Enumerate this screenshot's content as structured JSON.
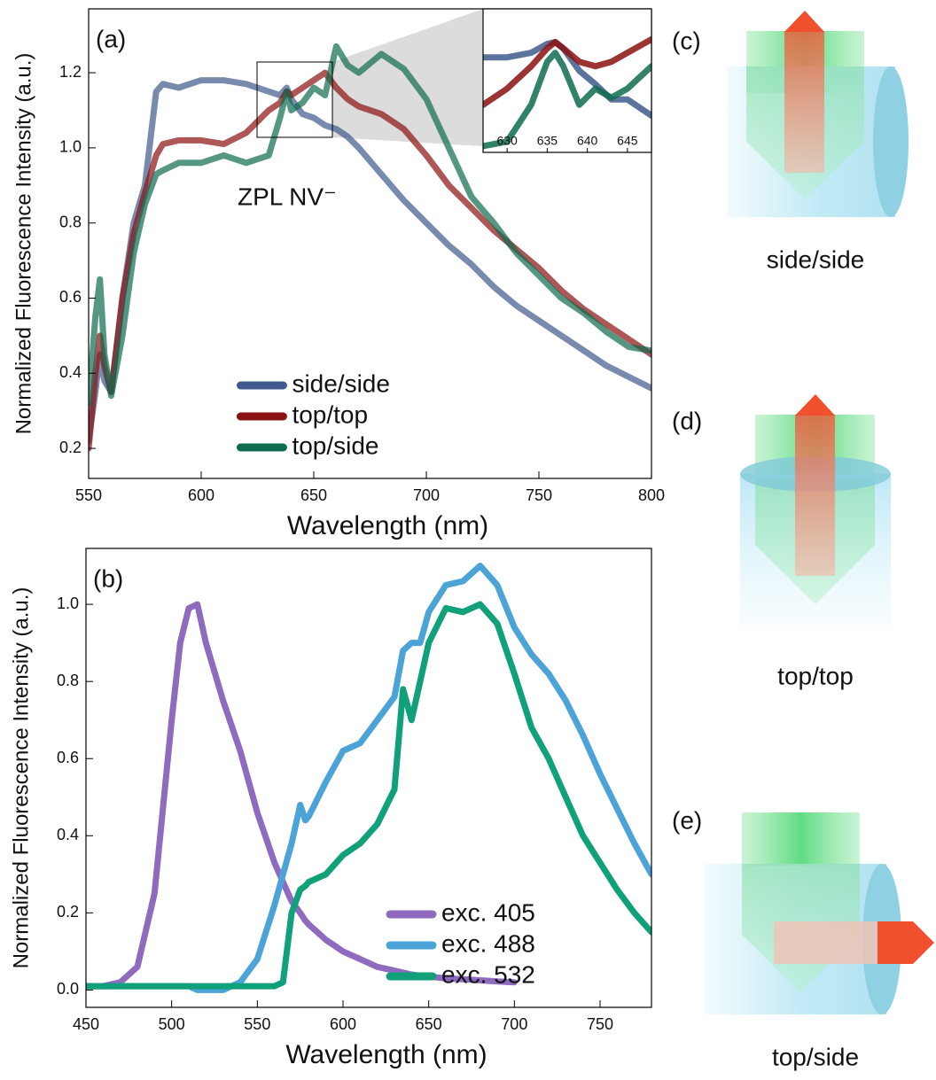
{
  "chart_data": [
    {
      "type": "line",
      "panel_label": "(a)",
      "annotation": "ZPL NV⁻",
      "xlabel": "Wavelength (nm)",
      "ylabel": "Normalized Fluorescence Intensity (a.u.)",
      "xlim": [
        550,
        800
      ],
      "ylim": [
        0.12,
        1.37
      ],
      "xticks": [
        550,
        600,
        650,
        700,
        750,
        800
      ],
      "yticks": [
        0.2,
        0.4,
        0.6,
        0.8,
        {
          "value": 1.0,
          "label": "1.0"
        },
        1.2
      ],
      "legend": "lower center",
      "line_opacity": 0.7,
      "x": [
        550,
        553,
        555,
        557,
        560,
        565,
        570,
        575,
        580,
        583,
        590,
        600,
        610,
        620,
        630,
        635,
        638,
        640,
        645,
        650,
        655,
        660,
        665,
        670,
        680,
        690,
        700,
        710,
        720,
        730,
        740,
        750,
        760,
        770,
        780,
        790,
        800
      ],
      "series": [
        {
          "name": "side/side",
          "color": "#3f5a8c",
          "values": [
            0.22,
            0.35,
            0.45,
            0.38,
            0.35,
            0.6,
            0.8,
            0.9,
            1.15,
            1.17,
            1.16,
            1.18,
            1.18,
            1.17,
            1.15,
            1.14,
            1.16,
            1.13,
            1.09,
            1.08,
            1.06,
            1.05,
            1.03,
            1.0,
            0.93,
            0.86,
            0.8,
            0.74,
            0.69,
            0.63,
            0.58,
            0.54,
            0.5,
            0.46,
            0.42,
            0.39,
            0.36
          ]
        },
        {
          "name": "top/top",
          "color": "#8b1010",
          "values": [
            0.2,
            0.4,
            0.5,
            0.42,
            0.35,
            0.6,
            0.77,
            0.88,
            0.98,
            1.01,
            1.02,
            1.02,
            1.01,
            1.04,
            1.1,
            1.12,
            1.15,
            1.14,
            1.16,
            1.18,
            1.2,
            1.16,
            1.13,
            1.11,
            1.09,
            1.05,
            0.98,
            0.9,
            0.84,
            0.78,
            0.73,
            0.68,
            0.62,
            0.57,
            0.53,
            0.49,
            0.45
          ]
        },
        {
          "name": "top/side",
          "color": "#0e6b4f",
          "values": [
            0.32,
            0.55,
            0.65,
            0.45,
            0.34,
            0.5,
            0.72,
            0.85,
            0.93,
            0.94,
            0.96,
            0.96,
            0.98,
            0.96,
            0.98,
            1.08,
            1.15,
            1.1,
            1.12,
            1.16,
            1.14,
            1.27,
            1.22,
            1.2,
            1.25,
            1.21,
            1.13,
            1.0,
            0.87,
            0.8,
            0.72,
            0.66,
            0.6,
            0.56,
            0.51,
            0.47,
            0.46
          ]
        }
      ]
    },
    {
      "type": "line",
      "xlim": [
        627,
        648
      ],
      "ylim": [
        1.04,
        1.2
      ],
      "xticks": [
        630,
        635,
        640,
        645
      ],
      "line_opacity": 0.85,
      "x": [
        627,
        630,
        633,
        635,
        636,
        637,
        639,
        641,
        643,
        645,
        648
      ],
      "series": [
        {
          "color": "#3f5a8c",
          "values": [
            1.146,
            1.146,
            1.151,
            1.161,
            1.163,
            1.156,
            1.131,
            1.116,
            1.099,
            1.099,
            1.081
          ]
        },
        {
          "color": "#8b1010",
          "values": [
            1.093,
            1.111,
            1.136,
            1.156,
            1.163,
            1.156,
            1.141,
            1.136,
            1.141,
            1.151,
            1.166
          ]
        },
        {
          "color": "#0e6b4f",
          "values": [
            1.047,
            1.052,
            1.093,
            1.141,
            1.151,
            1.136,
            1.093,
            1.111,
            1.101,
            1.111,
            1.136
          ]
        }
      ]
    },
    {
      "type": "line",
      "panel_label": "(b)",
      "xlabel": "Wavelength (nm)",
      "ylabel": "Normalized Fluorescence Intensity (a.u.)",
      "xlim": [
        450,
        780
      ],
      "ylim": [
        -0.045,
        1.145
      ],
      "xticks": [
        450,
        500,
        550,
        600,
        650,
        700,
        750
      ],
      "yticks": [
        {
          "value": 0,
          "label": "0.0"
        },
        0.2,
        0.4,
        0.6,
        0.8,
        {
          "value": 1,
          "label": "1.0"
        }
      ],
      "legend": "lower right",
      "line_opacity": 1,
      "x": [
        450,
        460,
        470,
        480,
        490,
        500,
        505,
        510,
        515,
        520,
        530,
        540,
        550,
        560,
        565,
        570,
        575,
        578,
        580,
        590,
        600,
        610,
        620,
        630,
        635,
        640,
        645,
        650,
        660,
        670,
        680,
        690,
        700,
        710,
        720,
        730,
        740,
        750,
        760,
        770,
        780
      ],
      "series": [
        {
          "name": "exc. 405",
          "color": "#8e6bbf",
          "values": [
            0.01,
            0.01,
            0.02,
            0.06,
            0.25,
            0.7,
            0.9,
            0.99,
            1.0,
            0.9,
            0.75,
            0.62,
            0.46,
            0.33,
            0.28,
            0.23,
            0.2,
            0.18,
            0.17,
            0.13,
            0.1,
            0.08,
            0.06,
            0.05,
            0.045,
            0.04,
            0.037,
            0.035,
            0.03,
            0.028,
            0.025,
            0.022,
            0.02,
            null,
            null,
            null,
            null,
            null,
            null,
            null,
            null
          ]
        },
        {
          "name": "exc. 488",
          "color": "#4ba3d8",
          "values": [
            0.01,
            0.01,
            0.01,
            0.01,
            0.01,
            0.01,
            0.01,
            0.01,
            0.0,
            0.0,
            0.0,
            0.02,
            0.08,
            0.22,
            0.3,
            0.38,
            0.48,
            0.44,
            0.45,
            0.54,
            0.62,
            0.64,
            0.7,
            0.76,
            0.88,
            0.9,
            0.9,
            0.98,
            1.05,
            1.06,
            1.1,
            1.05,
            0.94,
            0.87,
            0.82,
            0.75,
            0.66,
            0.56,
            0.47,
            0.38,
            0.3
          ]
        },
        {
          "name": "exc. 532",
          "color": "#10a07a",
          "values": [
            0.01,
            0.01,
            0.01,
            0.01,
            0.01,
            0.01,
            0.01,
            0.01,
            0.01,
            0.01,
            0.01,
            0.01,
            0.01,
            0.01,
            0.02,
            0.2,
            0.26,
            0.27,
            0.28,
            0.3,
            0.35,
            0.38,
            0.43,
            0.52,
            0.78,
            0.7,
            0.8,
            0.9,
            0.99,
            0.98,
            1.0,
            0.95,
            0.82,
            0.68,
            0.6,
            0.5,
            0.4,
            0.33,
            0.26,
            0.2,
            0.15
          ]
        }
      ]
    }
  ],
  "diagrams": [
    {
      "label": "(c)",
      "caption": "side/side"
    },
    {
      "label": "(d)",
      "caption": "top/top"
    },
    {
      "label": "(e)",
      "caption": "top/side"
    }
  ]
}
